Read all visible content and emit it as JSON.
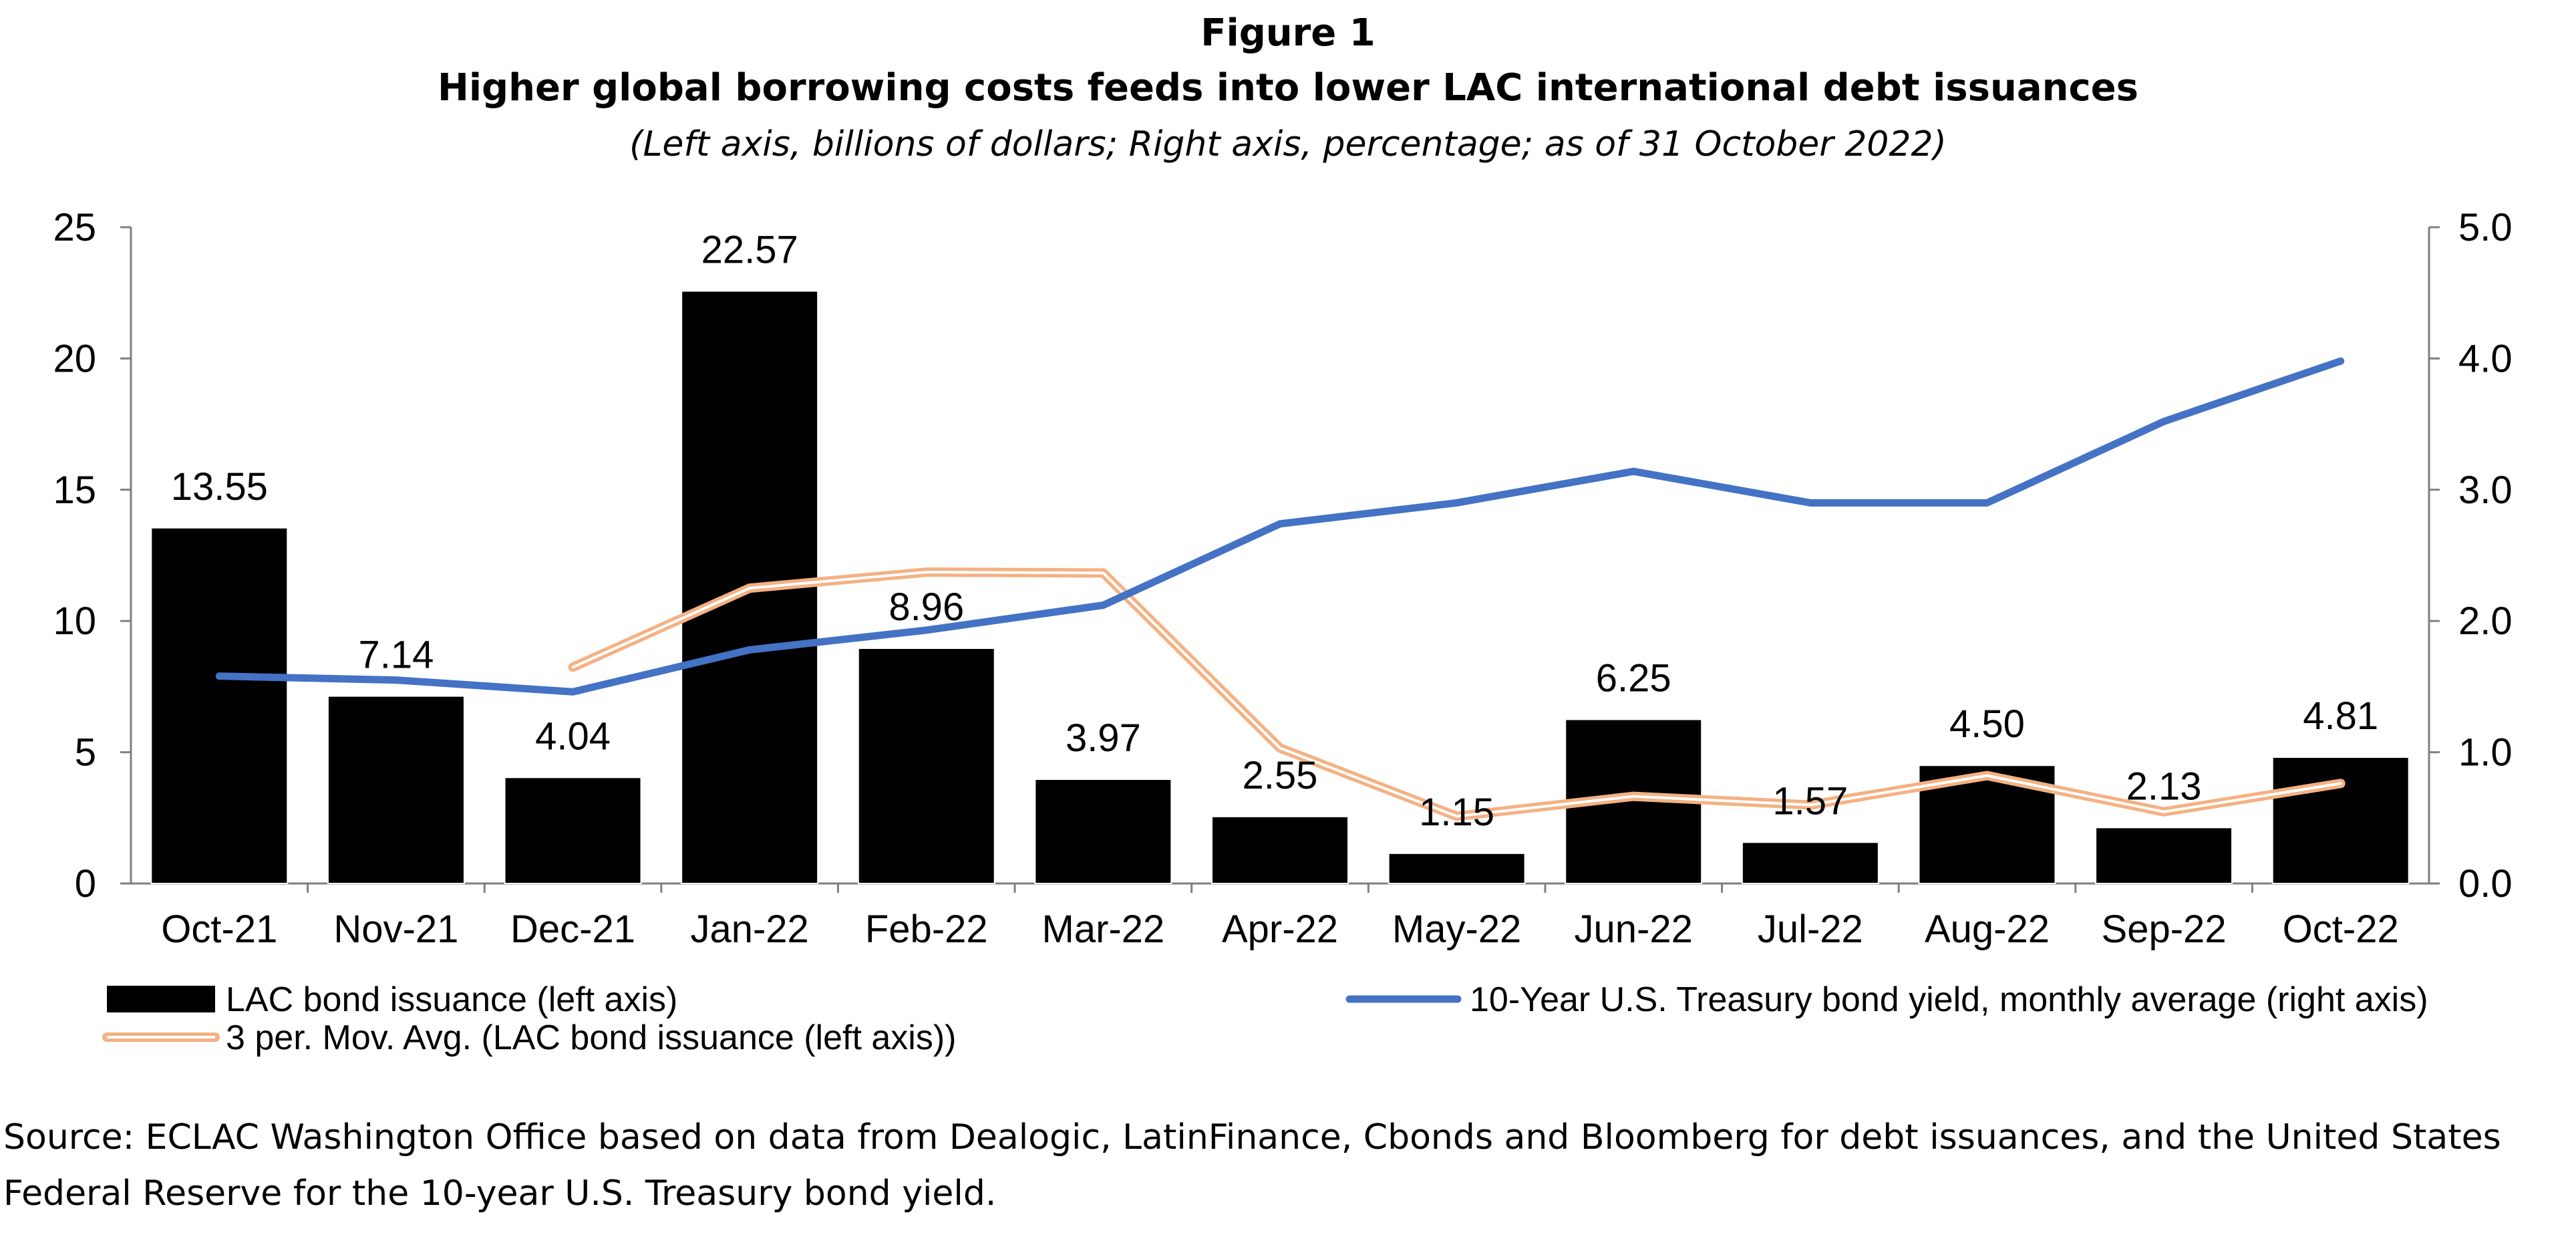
{
  "figure": {
    "label": "Figure 1",
    "title": "Higher global borrowing costs feeds into lower LAC international debt issuances",
    "subtitle": "(Left axis, billions of dollars; Right axis, percentage; as of 31 October 2022)"
  },
  "chart_data": {
    "type": "bar",
    "categories": [
      "Oct-21",
      "Nov-21",
      "Dec-21",
      "Jan-22",
      "Feb-22",
      "Mar-22",
      "Apr-22",
      "May-22",
      "Jun-22",
      "Jul-22",
      "Aug-22",
      "Sep-22",
      "Oct-22"
    ],
    "y_left": {
      "range": [
        0,
        25
      ],
      "ticks": [
        "0",
        "5",
        "10",
        "15",
        "20",
        "25"
      ]
    },
    "y_right": {
      "range": [
        0,
        5
      ],
      "ticks": [
        "0.0",
        "1.0",
        "2.0",
        "3.0",
        "4.0",
        "5.0"
      ]
    },
    "series": [
      {
        "name": "LAC bond issuance (left axis)",
        "kind": "bar",
        "axis": "left",
        "color": "#000000",
        "values": [
          13.55,
          7.14,
          4.04,
          22.57,
          8.96,
          3.97,
          2.55,
          1.15,
          6.25,
          1.57,
          4.5,
          2.13,
          4.81
        ],
        "labels": [
          "13.55",
          "7.14",
          "4.04",
          "22.57",
          "8.96",
          "3.97",
          "2.55",
          "1.15",
          "6.25",
          "1.57",
          "4.50",
          "2.13",
          "4.81"
        ]
      },
      {
        "name": "10-Year U.S. Treasury bond yield, monthly average  (right axis)",
        "kind": "line",
        "axis": "right",
        "color": "#4472C4",
        "values": [
          1.58,
          1.55,
          1.46,
          1.78,
          1.93,
          2.12,
          2.74,
          2.9,
          3.14,
          2.9,
          2.9,
          3.52,
          3.98
        ]
      },
      {
        "name": "3 per. Mov. Avg. (LAC bond issuance (left axis))",
        "kind": "line",
        "axis": "left",
        "color": "#F4B183",
        "values": [
          null,
          null,
          8.24,
          11.25,
          11.86,
          11.83,
          5.16,
          2.56,
          3.32,
          2.99,
          4.11,
          2.73,
          3.81
        ]
      }
    ],
    "legend_position": "bottom",
    "grid": false
  },
  "source": "Source: ECLAC Washington Office based on data from Dealogic, LatinFinance, Cbonds and Bloomberg for debt issuances, and the United States Federal Reserve for the 10-year U.S. Treasury bond yield."
}
